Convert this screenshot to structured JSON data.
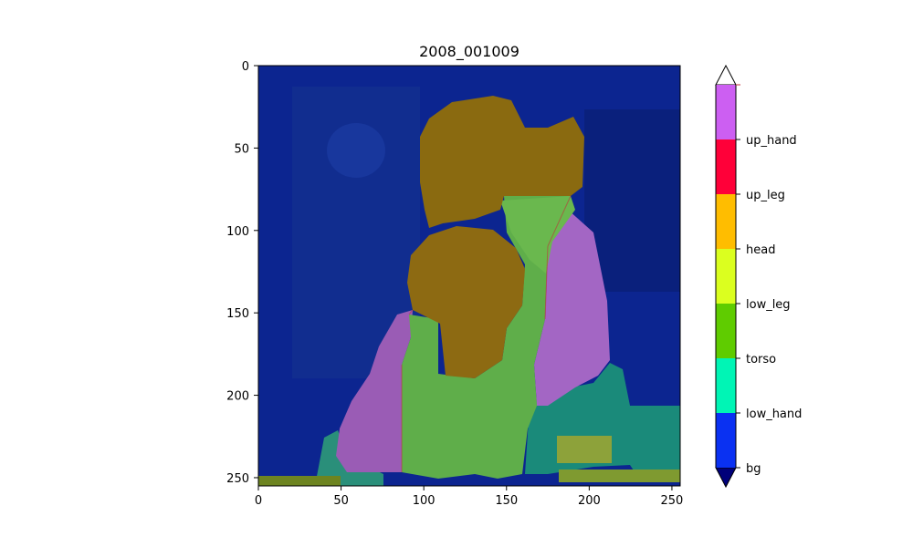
{
  "chart_data": {
    "type": "heatmap",
    "title": "2008_001009",
    "xlabel": "",
    "ylabel": "",
    "x_ticks": [
      0,
      50,
      100,
      150,
      200,
      250
    ],
    "y_ticks": [
      0,
      50,
      100,
      150,
      200,
      250
    ],
    "xlim": [
      0,
      255
    ],
    "ylim": [
      255,
      0
    ],
    "image_size": [
      256,
      256
    ],
    "overlay_description_classes": [
      "bg",
      "head",
      "up_hand",
      "torso",
      "low_hand"
    ],
    "colorbar": {
      "labels": [
        "bg",
        "low_hand",
        "torso",
        "low_leg",
        "head",
        "up_leg",
        "up_hand"
      ],
      "colors": [
        "#0a31f2",
        "#00f5b5",
        "#5fcc00",
        "#dbff1f",
        "#ffbd00",
        "#ff0039",
        "#cc5ff2"
      ],
      "under_color": "#00007a",
      "over_color": "#ffffff",
      "extend": "both"
    }
  }
}
